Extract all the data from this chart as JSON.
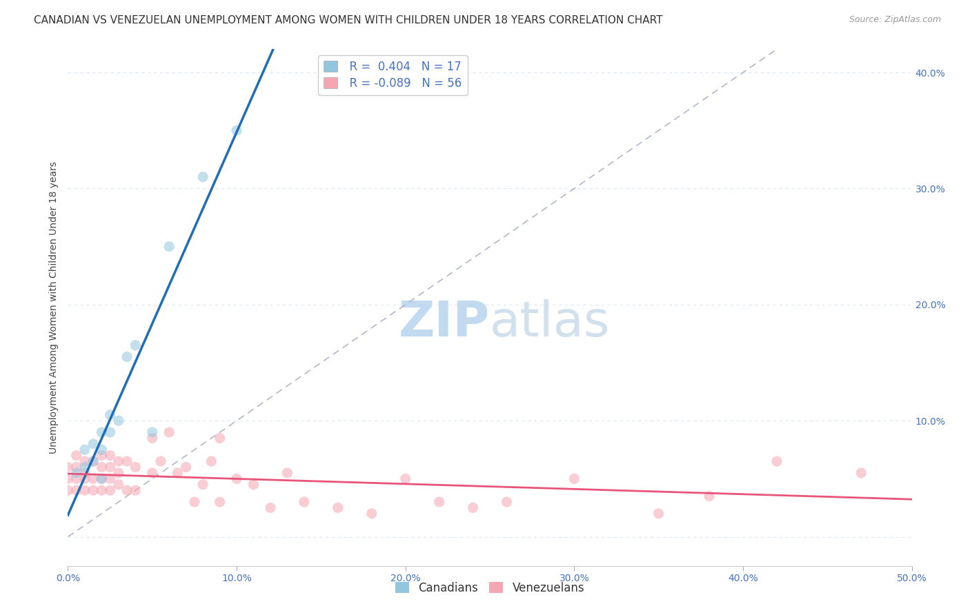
{
  "title": "CANADIAN VS VENEZUELAN UNEMPLOYMENT AMONG WOMEN WITH CHILDREN UNDER 18 YEARS CORRELATION CHART",
  "source": "Source: ZipAtlas.com",
  "ylabel": "Unemployment Among Women with Children Under 18 years",
  "xlabel": "",
  "xlim": [
    0.0,
    0.5
  ],
  "ylim": [
    -0.025,
    0.42
  ],
  "xticks": [
    0.0,
    0.1,
    0.2,
    0.3,
    0.4,
    0.5
  ],
  "yticks": [
    0.0,
    0.1,
    0.2,
    0.3,
    0.4
  ],
  "ytick_labels_right": [
    "",
    "10.0%",
    "20.0%",
    "30.0%",
    "40.0%"
  ],
  "xtick_labels": [
    "0.0%",
    "10.0%",
    "20.0%",
    "30.0%",
    "40.0%",
    "50.0%"
  ],
  "legend_r_canadian": "R =  0.404",
  "legend_n_canadian": "N = 17",
  "legend_r_venezuelan": "R = -0.089",
  "legend_n_venezuelan": "N = 56",
  "canadian_color": "#92c5de",
  "venezuelan_color": "#f4a7b2",
  "canadian_line_color": "#1e6db5",
  "venezuelan_line_color": "#e8547a",
  "diagonal_color": "#b0b8c8",
  "background_color": "#ffffff",
  "watermark_zip": "ZIP",
  "watermark_atlas": "atlas",
  "canadian_x": [
    0.005,
    0.01,
    0.01,
    0.015,
    0.015,
    0.02,
    0.02,
    0.02,
    0.025,
    0.025,
    0.03,
    0.035,
    0.04,
    0.05,
    0.06,
    0.08,
    0.1
  ],
  "canadian_y": [
    0.055,
    0.06,
    0.075,
    0.065,
    0.08,
    0.05,
    0.075,
    0.09,
    0.09,
    0.105,
    0.1,
    0.155,
    0.165,
    0.09,
    0.25,
    0.31,
    0.35
  ],
  "venezuelan_x": [
    0.0,
    0.0,
    0.0,
    0.005,
    0.005,
    0.005,
    0.005,
    0.01,
    0.01,
    0.01,
    0.01,
    0.015,
    0.015,
    0.015,
    0.02,
    0.02,
    0.02,
    0.02,
    0.025,
    0.025,
    0.025,
    0.025,
    0.03,
    0.03,
    0.03,
    0.035,
    0.035,
    0.04,
    0.04,
    0.05,
    0.05,
    0.055,
    0.06,
    0.065,
    0.07,
    0.075,
    0.08,
    0.085,
    0.09,
    0.09,
    0.1,
    0.11,
    0.12,
    0.13,
    0.14,
    0.16,
    0.18,
    0.2,
    0.22,
    0.24,
    0.26,
    0.3,
    0.35,
    0.38,
    0.42,
    0.47
  ],
  "venezuelan_y": [
    0.04,
    0.05,
    0.06,
    0.04,
    0.05,
    0.06,
    0.07,
    0.04,
    0.05,
    0.055,
    0.065,
    0.04,
    0.05,
    0.065,
    0.04,
    0.05,
    0.06,
    0.07,
    0.04,
    0.05,
    0.06,
    0.07,
    0.045,
    0.055,
    0.065,
    0.04,
    0.065,
    0.04,
    0.06,
    0.055,
    0.085,
    0.065,
    0.09,
    0.055,
    0.06,
    0.03,
    0.045,
    0.065,
    0.085,
    0.03,
    0.05,
    0.045,
    0.025,
    0.055,
    0.03,
    0.025,
    0.02,
    0.05,
    0.03,
    0.025,
    0.03,
    0.05,
    0.02,
    0.035,
    0.065,
    0.055
  ],
  "title_fontsize": 11,
  "source_fontsize": 9,
  "label_fontsize": 10,
  "tick_fontsize": 10,
  "legend_fontsize": 12,
  "watermark_fontsize_zip": 52,
  "watermark_fontsize_atlas": 52,
  "scatter_size": 120,
  "scatter_alpha": 0.55,
  "scatter_linewidth": 0.0,
  "grid_color": "#dde8f5",
  "tick_color": "#aaaaaa"
}
